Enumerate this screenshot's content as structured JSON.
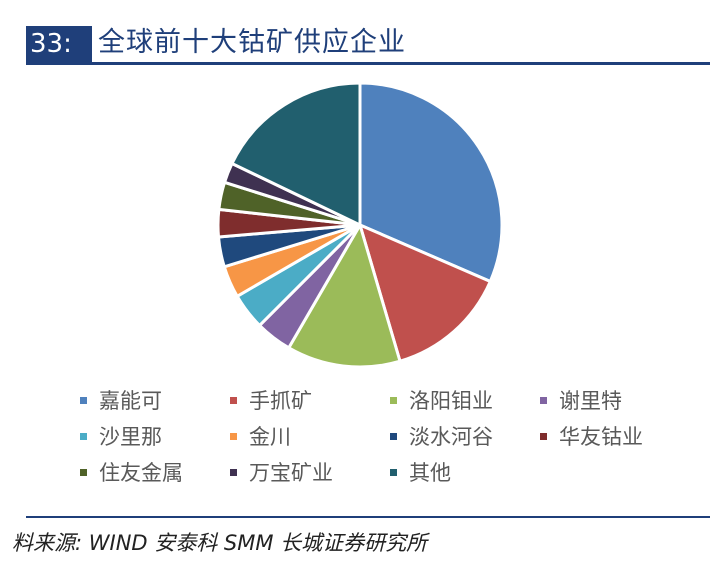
{
  "title": {
    "number": "33:",
    "text": "全球前十大钴矿供应企业"
  },
  "source": "料来源: WIND 安泰科 SMM 长城证券研究所",
  "chart_data": {
    "type": "pie",
    "title": "全球前十大钴矿供应企业",
    "legend_position": "bottom",
    "series": [
      {
        "name": "嘉能可",
        "value": 30.5,
        "color": "#4f81bd"
      },
      {
        "name": "手抓矿",
        "value": 13.5,
        "color": "#c0504d"
      },
      {
        "name": "洛阳钼业",
        "value": 12.5,
        "color": "#9bbb59"
      },
      {
        "name": "谢里特",
        "value": 4.0,
        "color": "#8064a2"
      },
      {
        "name": "沙里那",
        "value": 4.0,
        "color": "#4bacc6"
      },
      {
        "name": "金川",
        "value": 3.5,
        "color": "#f79646"
      },
      {
        "name": "淡水河谷",
        "value": 3.3,
        "color": "#1f497d"
      },
      {
        "name": "华友钴业",
        "value": 3.0,
        "color": "#7f2d2d"
      },
      {
        "name": "住友金属",
        "value": 3.0,
        "color": "#4f6228"
      },
      {
        "name": "万宝矿业",
        "value": 2.2,
        "color": "#3f3151"
      },
      {
        "name": "其他",
        "value": 17.3,
        "color": "#215f6e"
      }
    ]
  }
}
